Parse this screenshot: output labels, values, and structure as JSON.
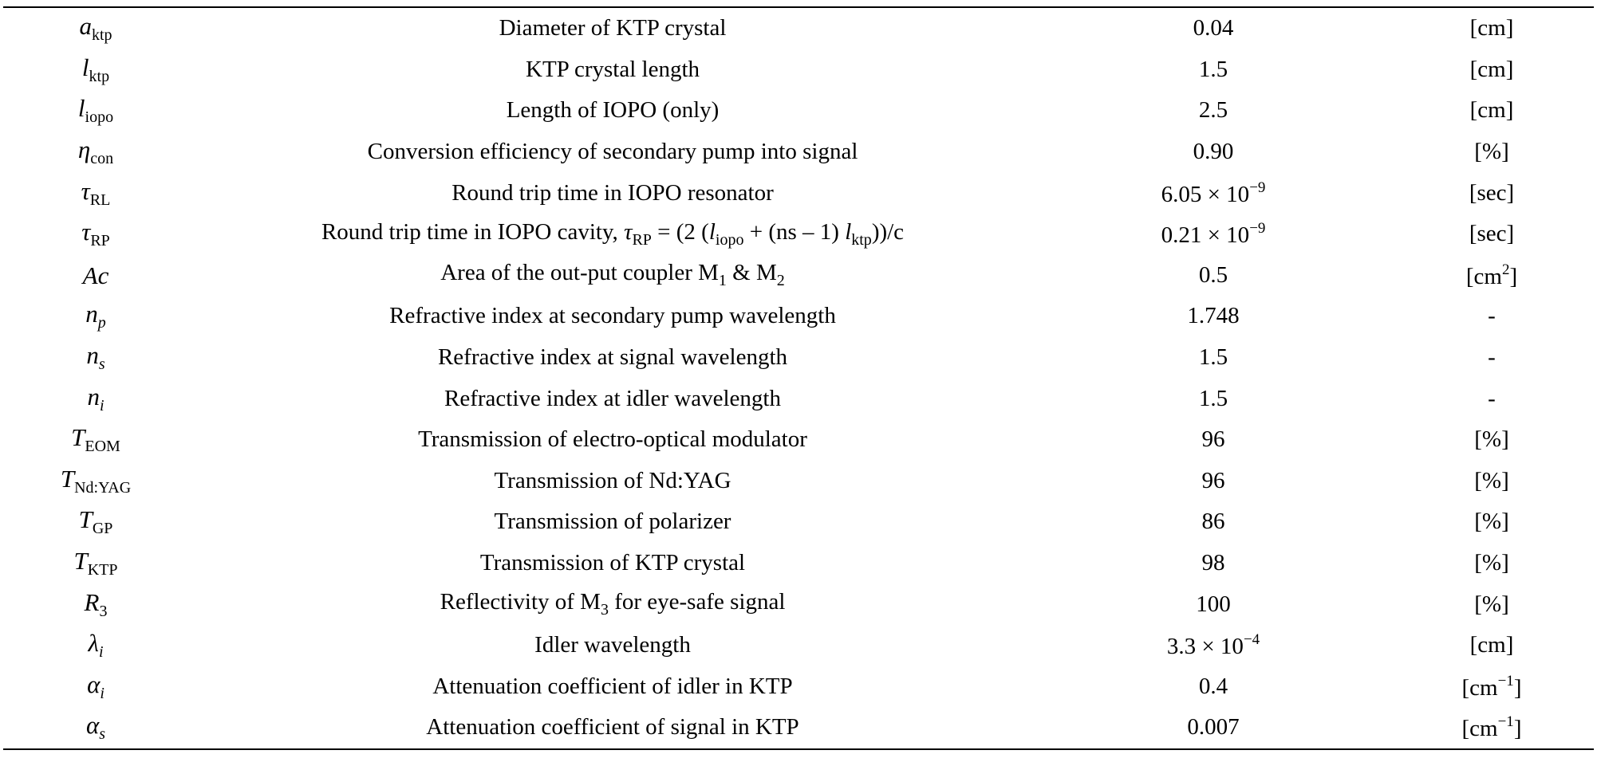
{
  "table": {
    "rows": [
      {
        "symbol": "a",
        "symbol_sub": "ktp",
        "description": "Diameter of KTP crystal",
        "value": "0.04",
        "unit": "[cm]"
      },
      {
        "symbol": "l",
        "symbol_sub": "ktp",
        "description": "KTP crystal length",
        "value": "1.5",
        "unit": "[cm]"
      },
      {
        "symbol": "l",
        "symbol_sub": "iopo",
        "description": "Length of IOPO (only)",
        "value": "2.5",
        "unit": "[cm]"
      },
      {
        "symbol": "η",
        "symbol_sub": "con",
        "description": "Conversion efficiency of secondary pump into signal",
        "value": "0.90",
        "unit": "[%]"
      },
      {
        "symbol": "τ",
        "symbol_sub": "RL",
        "description": "Round trip time in IOPO resonator",
        "value_base": "6.05 × 10",
        "value_exp": "−9",
        "unit": "[sec]"
      },
      {
        "symbol": "τ",
        "symbol_sub": "RP",
        "description_pre": "Round trip time in IOPO cavity, ",
        "description_sym": "τ",
        "description_sym_sub": "RP",
        "description_eq1": " = (2 (",
        "description_l1": "l",
        "description_l1_sub": "iopo",
        "description_eq2": " + (ns – 1) ",
        "description_l2": "l",
        "description_l2_sub": "ktp",
        "description_eq3": "))/c",
        "value_base": "0.21 × 10",
        "value_exp": "−9",
        "unit": "[sec]"
      },
      {
        "symbol": "Ac",
        "description_pre": "Area of the out-put coupler M",
        "description_m1_sub": "1",
        "description_mid": " & M",
        "description_m2_sub": "2",
        "value": "0.5",
        "unit_base": "[cm",
        "unit_exp": "2",
        "unit_end": "]"
      },
      {
        "symbol": "n",
        "symbol_sub": "p",
        "description": "Refractive index at secondary pump wavelength",
        "value": "1.748",
        "unit": "-"
      },
      {
        "symbol": "n",
        "symbol_sub": "s",
        "description": "Refractive index at signal wavelength",
        "value": "1.5",
        "unit": "-"
      },
      {
        "symbol": "n",
        "symbol_sub": "i",
        "description": "Refractive index at idler wavelength",
        "value": "1.5",
        "unit": "-"
      },
      {
        "symbol": "T",
        "symbol_sub": "EOM",
        "description": "Transmission of electro-optical modulator",
        "value": "96",
        "unit": "[%]"
      },
      {
        "symbol": "T",
        "symbol_sub": "Nd:YAG",
        "description": "Transmission of Nd:YAG",
        "value": "96",
        "unit": "[%]"
      },
      {
        "symbol": "T",
        "symbol_sub": "GP",
        "description": "Transmission of polarizer",
        "value": "86",
        "unit": "[%]"
      },
      {
        "symbol": "T",
        "symbol_sub": "KTP",
        "description": "Transmission of KTP crystal",
        "value": "98",
        "unit": "[%]"
      },
      {
        "symbol": "R",
        "symbol_sub": "3",
        "description_pre": "Reflectivity of M",
        "description_m_sub": "3",
        "description_post": " for eye-safe signal",
        "value": "100",
        "unit": "[%]"
      },
      {
        "symbol": "λ",
        "symbol_sub": "i",
        "description": "Idler wavelength",
        "value_base": "3.3 × 10",
        "value_exp": "−4",
        "unit": "[cm]"
      },
      {
        "symbol": "α",
        "symbol_sub": "i",
        "description": "Attenuation coefficient of idler in KTP",
        "value": "0.4",
        "unit_base": "[cm",
        "unit_exp": "−1",
        "unit_end": "]"
      },
      {
        "symbol": "α",
        "symbol_sub": "s",
        "description": "Attenuation coefficient of signal in KTP",
        "value": "0.007",
        "unit_base": "[cm",
        "unit_exp": "−1",
        "unit_end": "]"
      }
    ]
  }
}
